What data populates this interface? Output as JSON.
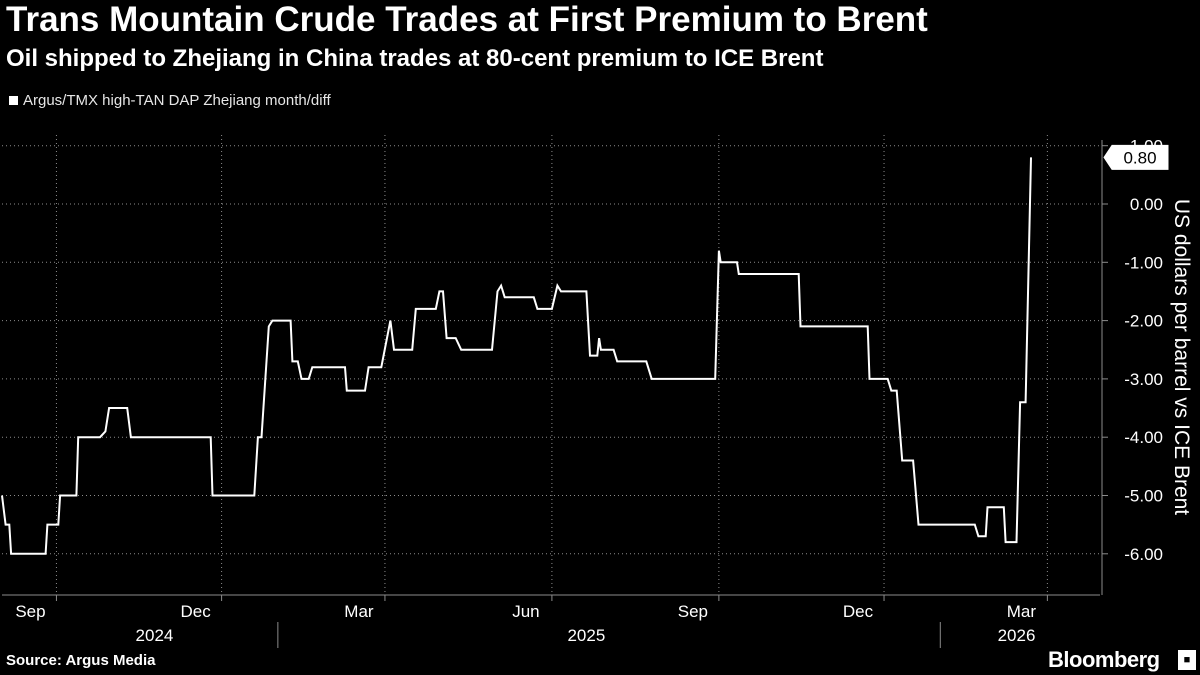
{
  "header": {
    "title": "Trans Mountain Crude Trades at First Premium to Brent",
    "subtitle": "Oil shipped to Zhejiang in China trades at 80-cent premium to ICE Brent"
  },
  "footer": {
    "source": "Source: Argus Media",
    "brand": "Bloomberg",
    "brand_icon": "bloomberg-terminal-icon"
  },
  "colors": {
    "background": "#000000",
    "line": "#ffffff",
    "grid": "#8c8c8c",
    "text": "#ffffff"
  },
  "chart_data": {
    "type": "line",
    "title": "Trans Mountain Crude Trades at First Premium to Brent",
    "subtitle": "Oil shipped to Zhejiang in China trades at 80-cent premium to ICE Brent",
    "xlabel": "",
    "ylabel": "US dollars per barrel vs ICE Brent",
    "ylim": [
      -6.7,
      1.0
    ],
    "yticks": [
      1.0,
      0.0,
      -1.0,
      -2.0,
      -3.0,
      -4.0,
      -5.0,
      -6.0
    ],
    "ytick_labels": [
      "1.00",
      "0.00",
      "-1.00",
      "-2.00",
      "-3.00",
      "-4.00",
      "-5.00",
      "-6.00"
    ],
    "xlim": [
      "2024-08-02",
      "2026-03-30"
    ],
    "x_month_ticks": [
      {
        "date": "2024-09-01",
        "label": "Sep"
      },
      {
        "date": "2024-12-01",
        "label": "Dec"
      },
      {
        "date": "2025-03-01",
        "label": "Mar"
      },
      {
        "date": "2025-06-01",
        "label": "Jun"
      },
      {
        "date": "2025-09-01",
        "label": "Sep"
      },
      {
        "date": "2025-12-01",
        "label": "Dec"
      },
      {
        "date": "2026-03-01",
        "label": "Mar"
      }
    ],
    "x_year_labels": [
      {
        "label": "2024",
        "center": "2024-10-25"
      },
      {
        "label": "2025",
        "center": "2025-06-20"
      },
      {
        "label": "2026",
        "center": "2026-02-12"
      }
    ],
    "x_year_separators": [
      "2025-01-01",
      "2026-01-01"
    ],
    "grid": true,
    "legend": "top-left",
    "series": [
      {
        "name": "Argus/TMX high-TAN DAP Zhejiang month/diff",
        "last_value_label": "0.80",
        "last_value": 0.8,
        "points": [
          [
            "2024-08-02",
            -5.0
          ],
          [
            "2024-08-04",
            -5.5
          ],
          [
            "2024-08-06",
            -5.5
          ],
          [
            "2024-08-07",
            -6.0
          ],
          [
            "2024-08-26",
            -6.0
          ],
          [
            "2024-08-27",
            -5.5
          ],
          [
            "2024-09-02",
            -5.5
          ],
          [
            "2024-09-03",
            -5.0
          ],
          [
            "2024-09-12",
            -5.0
          ],
          [
            "2024-09-13",
            -4.0
          ],
          [
            "2024-09-25",
            -4.0
          ],
          [
            "2024-09-28",
            -3.9
          ],
          [
            "2024-09-30",
            -3.5
          ],
          [
            "2024-10-10",
            -3.5
          ],
          [
            "2024-10-12",
            -4.0
          ],
          [
            "2024-11-25",
            -4.0
          ],
          [
            "2024-11-26",
            -5.0
          ],
          [
            "2024-12-19",
            -5.0
          ],
          [
            "2024-12-21",
            -4.0
          ],
          [
            "2024-12-23",
            -4.0
          ],
          [
            "2024-12-27",
            -2.1
          ],
          [
            "2024-12-29",
            -2.0
          ],
          [
            "2025-01-08",
            -2.0
          ],
          [
            "2025-01-09",
            -2.7
          ],
          [
            "2025-01-12",
            -2.7
          ],
          [
            "2025-01-14",
            -3.0
          ],
          [
            "2025-01-18",
            -3.0
          ],
          [
            "2025-01-20",
            -2.8
          ],
          [
            "2025-02-07",
            -2.8
          ],
          [
            "2025-02-08",
            -3.2
          ],
          [
            "2025-02-18",
            -3.2
          ],
          [
            "2025-02-20",
            -2.8
          ],
          [
            "2025-02-27",
            -2.8
          ],
          [
            "2025-03-04",
            -2.0
          ],
          [
            "2025-03-06",
            -2.5
          ],
          [
            "2025-03-16",
            -2.5
          ],
          [
            "2025-03-18",
            -1.8
          ],
          [
            "2025-03-29",
            -1.8
          ],
          [
            "2025-03-31",
            -1.5
          ],
          [
            "2025-04-02",
            -1.5
          ],
          [
            "2025-04-04",
            -2.3
          ],
          [
            "2025-04-09",
            -2.3
          ],
          [
            "2025-04-12",
            -2.5
          ],
          [
            "2025-04-29",
            -2.5
          ],
          [
            "2025-05-02",
            -1.5
          ],
          [
            "2025-05-04",
            -1.4
          ],
          [
            "2025-05-06",
            -1.6
          ],
          [
            "2025-05-22",
            -1.6
          ],
          [
            "2025-05-24",
            -1.8
          ],
          [
            "2025-06-01",
            -1.8
          ],
          [
            "2025-06-04",
            -1.4
          ],
          [
            "2025-06-06",
            -1.5
          ],
          [
            "2025-06-20",
            -1.5
          ],
          [
            "2025-06-22",
            -2.6
          ],
          [
            "2025-06-26",
            -2.6
          ],
          [
            "2025-06-27",
            -2.3
          ],
          [
            "2025-06-28",
            -2.5
          ],
          [
            "2025-07-05",
            -2.5
          ],
          [
            "2025-07-07",
            -2.7
          ],
          [
            "2025-07-23",
            -2.7
          ],
          [
            "2025-07-26",
            -3.0
          ],
          [
            "2025-08-30",
            -3.0
          ],
          [
            "2025-09-01",
            -0.8
          ],
          [
            "2025-09-02",
            -1.0
          ],
          [
            "2025-09-11",
            -1.0
          ],
          [
            "2025-09-12",
            -1.2
          ],
          [
            "2025-10-15",
            -1.2
          ],
          [
            "2025-10-16",
            -2.1
          ],
          [
            "2025-11-22",
            -2.1
          ],
          [
            "2025-11-23",
            -3.0
          ],
          [
            "2025-12-03",
            -3.0
          ],
          [
            "2025-12-05",
            -3.2
          ],
          [
            "2025-12-08",
            -3.2
          ],
          [
            "2025-12-11",
            -4.4
          ],
          [
            "2025-12-17",
            -4.4
          ],
          [
            "2025-12-20",
            -5.5
          ],
          [
            "2026-01-20",
            -5.5
          ],
          [
            "2026-01-22",
            -5.7
          ],
          [
            "2026-01-26",
            -5.7
          ],
          [
            "2026-01-27",
            -5.2
          ],
          [
            "2026-02-05",
            -5.2
          ],
          [
            "2026-02-06",
            -5.8
          ],
          [
            "2026-02-12",
            -5.8
          ],
          [
            "2026-02-14",
            -3.4
          ],
          [
            "2026-02-17",
            -3.4
          ],
          [
            "2026-02-20",
            0.8
          ]
        ]
      }
    ]
  }
}
